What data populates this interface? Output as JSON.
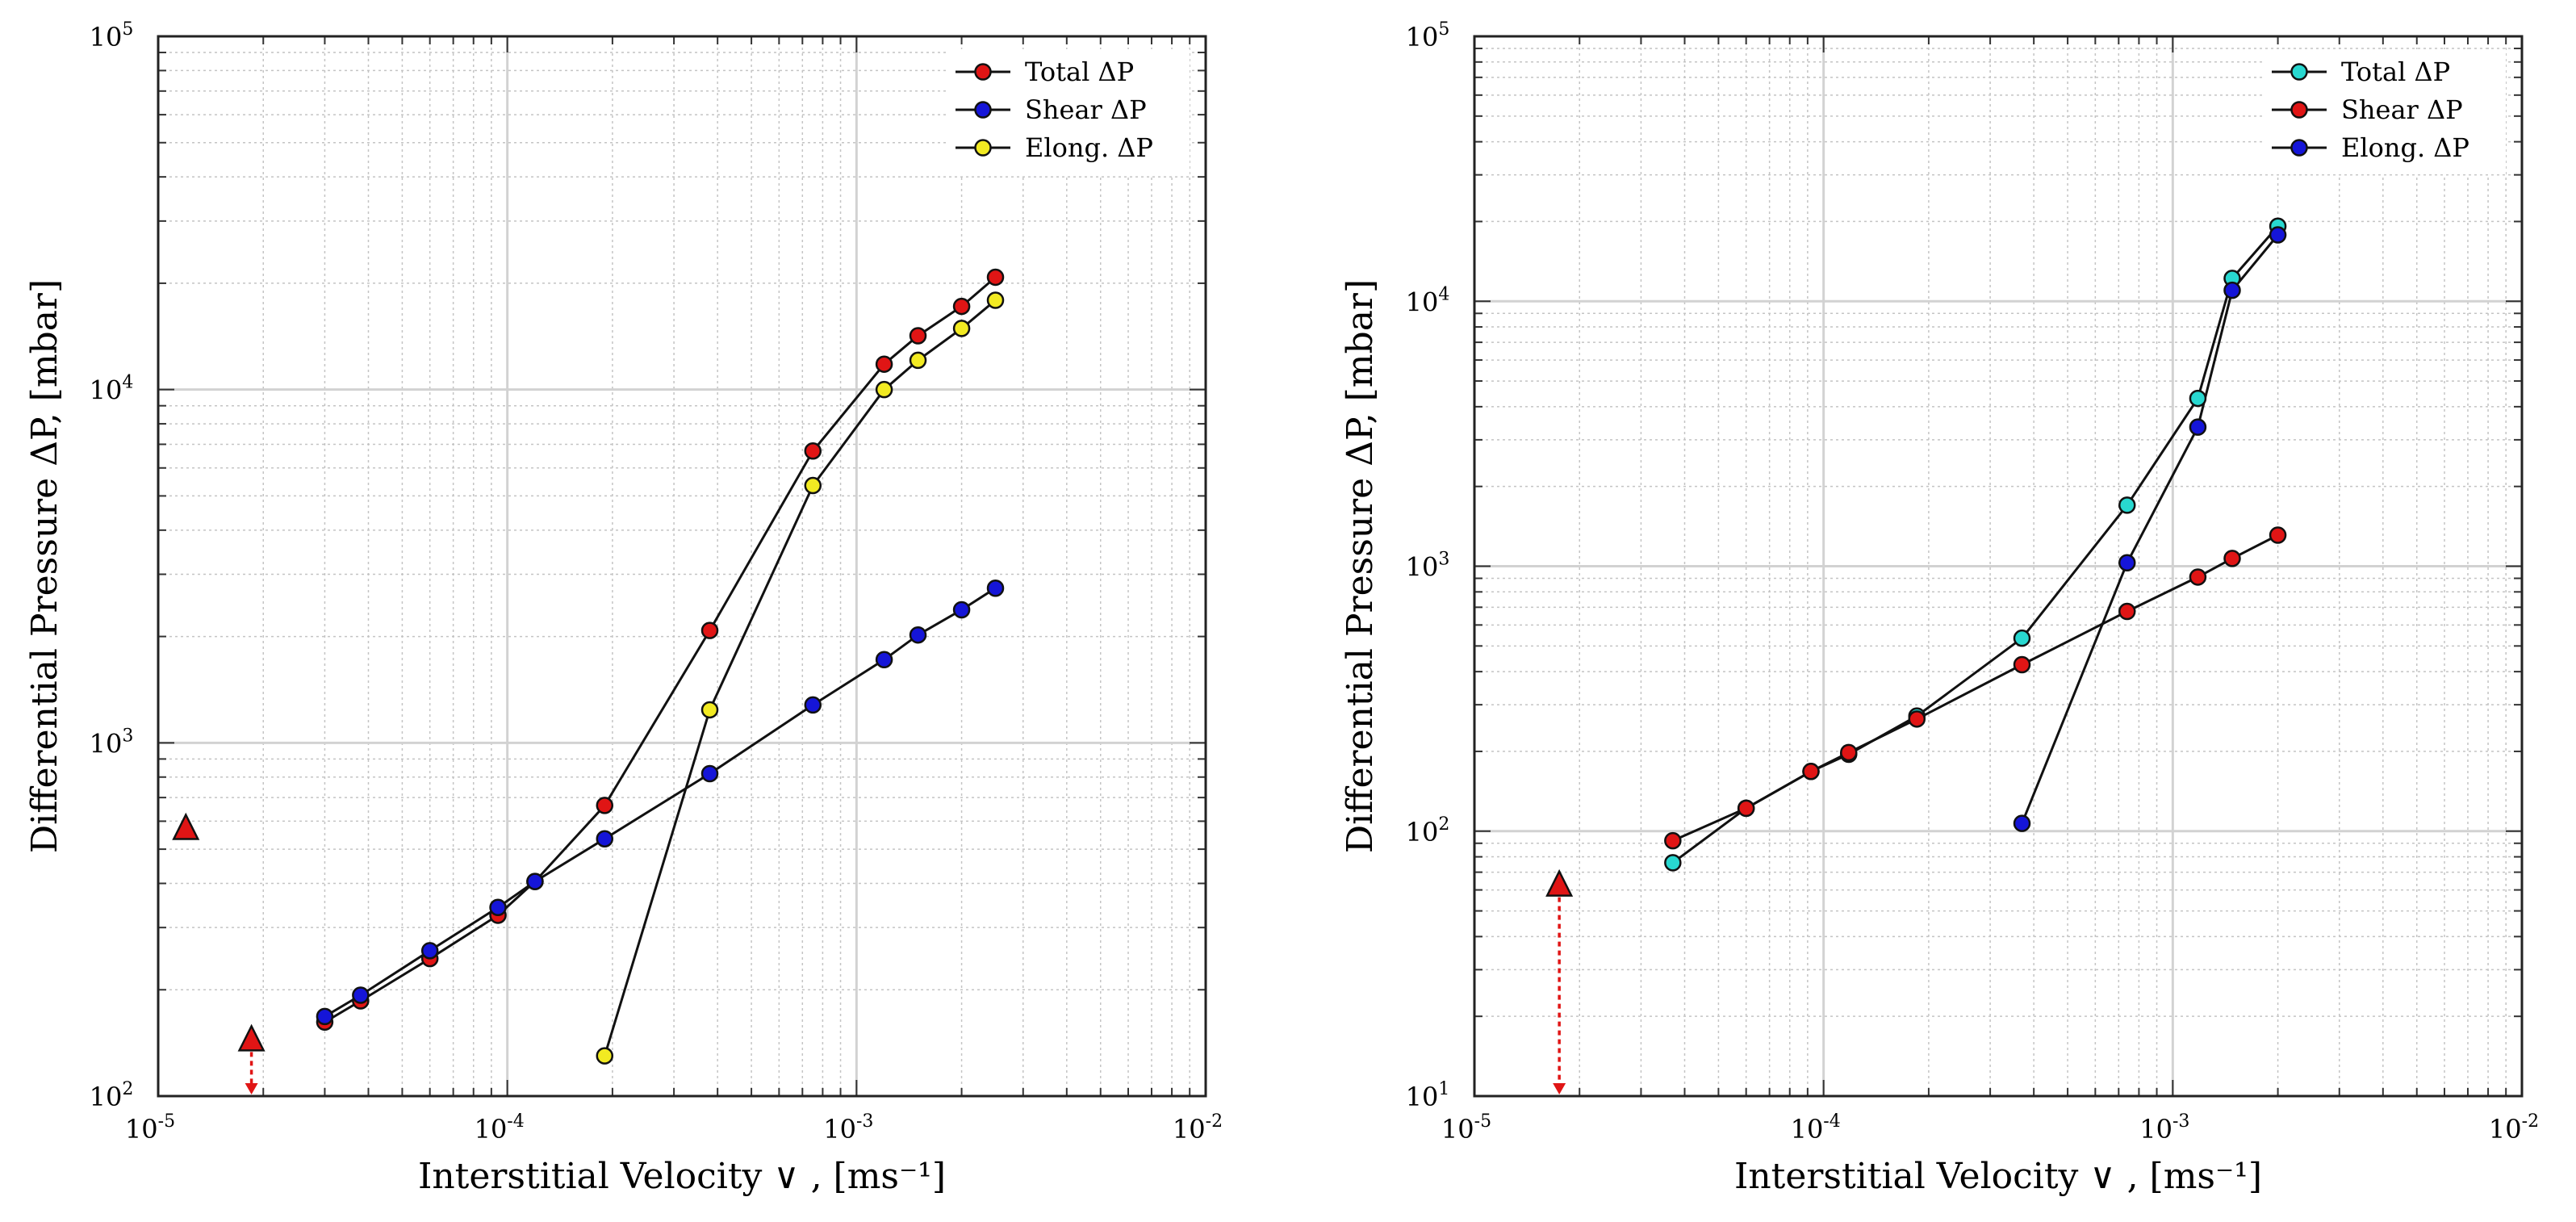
{
  "chart_data": [
    {
      "type": "scatter",
      "panel": "left",
      "xlabel": "Interstitial Velocity ∨ , [ms⁻¹]",
      "ylabel": "Differential Pressure ΔP, [mbar]",
      "xscale": "log",
      "yscale": "log",
      "xlim": [
        1e-05,
        0.01
      ],
      "ylim": [
        100,
        100000
      ],
      "grid": true,
      "legend_position": "top-right",
      "xticks": [
        {
          "base": "10",
          "exp": "-5"
        },
        {
          "base": "10",
          "exp": "-4"
        },
        {
          "base": "10",
          "exp": "-3"
        },
        {
          "base": "10",
          "exp": "-2"
        }
      ],
      "yticks": [
        {
          "base": "10",
          "exp": "2"
        },
        {
          "base": "10",
          "exp": "3"
        },
        {
          "base": "10",
          "exp": "4"
        },
        {
          "base": "10",
          "exp": "5"
        }
      ],
      "series": [
        {
          "name": "Total ΔP",
          "color": "#e01515",
          "x": [
            3e-05,
            3.8e-05,
            6e-05,
            9.4e-05,
            0.00012,
            0.00019,
            0.00038,
            0.00075,
            0.0012,
            0.0015,
            0.002,
            0.0025
          ],
          "y": [
            162,
            186,
            245,
            325,
            405,
            665,
            2080,
            6700,
            11800,
            14200,
            17200,
            20800
          ]
        },
        {
          "name": "Shear ΔP",
          "color": "#1515d8",
          "x": [
            3e-05,
            3.8e-05,
            6e-05,
            9.4e-05,
            0.00012,
            0.00019,
            0.00038,
            0.00075,
            0.0012,
            0.0015,
            0.002,
            0.0025
          ],
          "y": [
            168,
            193,
            258,
            342,
            405,
            535,
            818,
            1280,
            1720,
            2020,
            2380,
            2740
          ]
        },
        {
          "name": "Elong. ΔP",
          "color": "#f2ea22",
          "x": [
            0.00019,
            0.00038,
            0.00075,
            0.0012,
            0.0015,
            0.002,
            0.0025
          ],
          "y": [
            130,
            1240,
            5350,
            10000,
            12100,
            14900,
            17900
          ]
        }
      ],
      "markers": [
        {
          "shape": "triangle",
          "color": "#e01515",
          "x": 1.2e-05,
          "y": 575,
          "arrow_down": false
        },
        {
          "shape": "triangle",
          "color": "#e01515",
          "x": 1.85e-05,
          "y": 145,
          "arrow_down": true
        }
      ]
    },
    {
      "type": "scatter",
      "panel": "right",
      "xlabel": "Interstitial Velocity ∨ , [ms⁻¹]",
      "ylabel": "Differential Pressure ΔP, [mbar]",
      "xscale": "log",
      "yscale": "log",
      "xlim": [
        1e-05,
        0.01
      ],
      "ylim": [
        10,
        100000
      ],
      "grid": true,
      "legend_position": "top-right",
      "xticks": [
        {
          "base": "10",
          "exp": "-5"
        },
        {
          "base": "10",
          "exp": "-4"
        },
        {
          "base": "10",
          "exp": "-3"
        },
        {
          "base": "10",
          "exp": "-2"
        }
      ],
      "yticks": [
        {
          "base": "10",
          "exp": "1"
        },
        {
          "base": "10",
          "exp": "2"
        },
        {
          "base": "10",
          "exp": "3"
        },
        {
          "base": "10",
          "exp": "4"
        },
        {
          "base": "10",
          "exp": "5"
        }
      ],
      "series": [
        {
          "name": "Total ΔP",
          "color": "#28d8d0",
          "x": [
            3.7e-05,
            6e-05,
            9.2e-05,
            0.000118,
            0.000185,
            0.00037,
            0.00074,
            0.00118,
            0.00148,
            0.002
          ],
          "y": [
            76,
            122,
            168,
            195,
            272,
            535,
            1700,
            4300,
            12200,
            19200
          ]
        },
        {
          "name": "Shear ΔP",
          "color": "#e01515",
          "x": [
            3.7e-05,
            6e-05,
            9.2e-05,
            0.000118,
            0.000185,
            0.00037,
            0.00074,
            0.00118,
            0.00148,
            0.002
          ],
          "y": [
            92,
            122,
            168,
            198,
            265,
            425,
            675,
            910,
            1070,
            1310
          ]
        },
        {
          "name": "Elong. ΔP",
          "color": "#1515d8",
          "x": [
            0.00037,
            0.00074,
            0.00118,
            0.00148,
            0.002
          ],
          "y": [
            107,
            1030,
            3350,
            11000,
            17800
          ]
        }
      ],
      "markers": [
        {
          "shape": "triangle",
          "color": "#e01515",
          "x": 1.75e-05,
          "y": 63,
          "arrow_down": true
        }
      ]
    }
  ]
}
